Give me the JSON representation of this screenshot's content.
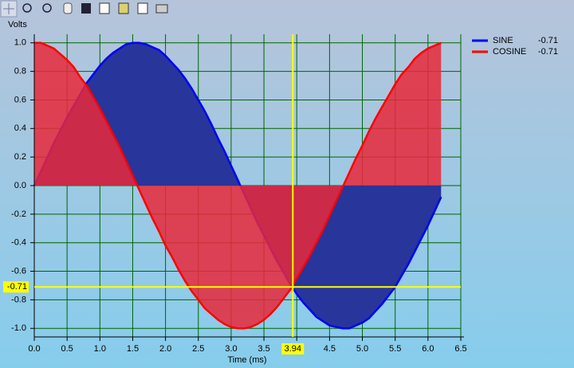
{
  "chart_data": {
    "type": "area",
    "ylabel": "Volts",
    "xlabel": "Time (ms)",
    "x": [
      0,
      0.1,
      0.2,
      0.3,
      0.4,
      0.5,
      0.6,
      0.7,
      0.8,
      0.9,
      1.0,
      1.1,
      1.2,
      1.3,
      1.4,
      1.5,
      1.6,
      1.7,
      1.8,
      1.9,
      2.0,
      2.1,
      2.2,
      2.3,
      2.4,
      2.5,
      2.6,
      2.7,
      2.8,
      2.9,
      3.0,
      3.1,
      3.2,
      3.3,
      3.4,
      3.5,
      3.6,
      3.7,
      3.8,
      3.9,
      4.0,
      4.1,
      4.2,
      4.3,
      4.4,
      4.5,
      4.6,
      4.7,
      4.8,
      4.9,
      5.0,
      5.1,
      5.2,
      5.3,
      5.4,
      5.5,
      5.6,
      5.7,
      5.8,
      5.9,
      6.0,
      6.1,
      6.2
    ],
    "series": [
      {
        "name": "SINE",
        "color": "#0000ff",
        "fill": "#28359a",
        "readout": -0.71,
        "values": [
          0,
          0.1,
          0.2,
          0.3,
          0.39,
          0.48,
          0.56,
          0.64,
          0.72,
          0.78,
          0.84,
          0.89,
          0.93,
          0.96,
          0.99,
          1.0,
          1.0,
          0.99,
          0.97,
          0.95,
          0.91,
          0.86,
          0.81,
          0.75,
          0.68,
          0.6,
          0.52,
          0.43,
          0.33,
          0.24,
          0.14,
          0.04,
          -0.06,
          -0.16,
          -0.26,
          -0.35,
          -0.44,
          -0.53,
          -0.61,
          -0.69,
          -0.76,
          -0.82,
          -0.87,
          -0.92,
          -0.95,
          -0.98,
          -0.99,
          -1.0,
          -1.0,
          -0.98,
          -0.96,
          -0.93,
          -0.88,
          -0.83,
          -0.77,
          -0.71,
          -0.63,
          -0.55,
          -0.46,
          -0.37,
          -0.28,
          -0.18,
          -0.08
        ]
      },
      {
        "name": "COSINE",
        "color": "#ff0000",
        "fill": "#e8283a",
        "readout": -0.71,
        "values": [
          1.0,
          1.0,
          0.98,
          0.96,
          0.92,
          0.88,
          0.83,
          0.76,
          0.7,
          0.62,
          0.54,
          0.45,
          0.36,
          0.27,
          0.17,
          0.07,
          -0.03,
          -0.13,
          -0.23,
          -0.32,
          -0.42,
          -0.5,
          -0.59,
          -0.67,
          -0.74,
          -0.8,
          -0.86,
          -0.9,
          -0.94,
          -0.97,
          -0.99,
          -1.0,
          -1.0,
          -0.99,
          -0.97,
          -0.94,
          -0.9,
          -0.85,
          -0.79,
          -0.73,
          -0.65,
          -0.57,
          -0.49,
          -0.4,
          -0.31,
          -0.21,
          -0.11,
          -0.01,
          0.09,
          0.19,
          0.28,
          0.38,
          0.47,
          0.55,
          0.63,
          0.71,
          0.78,
          0.83,
          0.89,
          0.93,
          0.96,
          0.98,
          1.0
        ]
      }
    ],
    "xlim": [
      0,
      6.5
    ],
    "xticks": [
      {
        "value": 0,
        "label": "0.0"
      },
      0.5,
      {
        "value": 1,
        "label": "1.0"
      },
      1.5,
      {
        "value": 2,
        "label": "2.0"
      },
      2.5,
      {
        "value": 3,
        "label": "3.0"
      },
      3.5,
      {
        "value": 4,
        "label": "4.0"
      },
      4.5,
      {
        "value": 5,
        "label": "5.0"
      },
      5.5,
      {
        "value": 6,
        "label": "6.0"
      },
      6.5
    ],
    "ylim": [
      -1.06,
      1.06
    ],
    "yticks": [
      {
        "value": -1,
        "label": "-1.0"
      },
      -0.8,
      -0.6,
      -0.4,
      -0.2,
      {
        "value": 0,
        "label": "0.0"
      },
      0.2,
      0.4,
      0.6,
      0.8,
      {
        "value": 1,
        "label": "1.0"
      }
    ],
    "grid": true,
    "grid_color": "#006400",
    "cursor": {
      "x": 3.94,
      "y": -0.71,
      "color": "#ffff00"
    },
    "legend": "top-right"
  }
}
